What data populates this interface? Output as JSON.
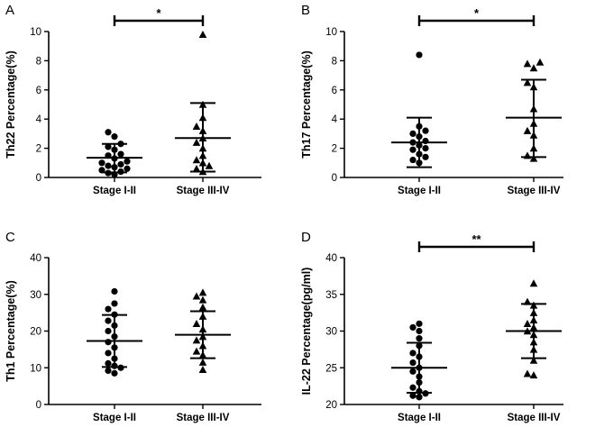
{
  "chart_data": [
    {
      "type": "scatter",
      "panel_label": "A",
      "ylabel": "Th22 Percentage(%)",
      "ylim": [
        0,
        10
      ],
      "yticks": [
        0,
        2,
        4,
        6,
        8,
        10
      ],
      "categories": [
        "Stage I-II",
        "Stage III-IV"
      ],
      "series": [
        {
          "marker": "circle",
          "values": [
            0.2,
            0.3,
            0.4,
            0.5,
            0.6,
            0.7,
            0.8,
            0.9,
            1.0,
            1.1,
            1.3,
            1.5,
            1.6,
            1.9,
            2.1,
            2.3,
            2.8,
            3.1
          ],
          "mean": 1.35,
          "sd_low": 0.35,
          "sd_high": 2.3
        },
        {
          "marker": "triangle",
          "values": [
            0.4,
            0.6,
            0.8,
            1.0,
            1.2,
            1.5,
            2.0,
            2.4,
            2.7,
            3.2,
            3.5,
            4.1,
            5.0,
            9.8
          ],
          "mean": 2.7,
          "sd_low": 0.4,
          "sd_high": 5.1
        }
      ],
      "significance": "*"
    },
    {
      "type": "scatter",
      "panel_label": "B",
      "ylabel": "Th17 Percentage(%)",
      "ylim": [
        0,
        10
      ],
      "yticks": [
        0,
        2,
        4,
        6,
        8,
        10
      ],
      "categories": [
        "Stage I-II",
        "Stage III-IV"
      ],
      "series": [
        {
          "marker": "circle",
          "values": [
            1.0,
            1.2,
            1.4,
            1.6,
            1.9,
            2.0,
            2.2,
            2.4,
            2.5,
            2.8,
            3.0,
            3.2,
            3.5,
            8.4
          ],
          "mean": 2.4,
          "sd_low": 0.7,
          "sd_high": 4.1
        },
        {
          "marker": "triangle",
          "values": [
            1.3,
            1.5,
            2.0,
            2.9,
            3.2,
            3.7,
            4.7,
            6.2,
            6.5,
            7.5,
            7.8,
            7.9
          ],
          "mean": 4.1,
          "sd_low": 1.4,
          "sd_high": 6.7
        }
      ],
      "significance": "*"
    },
    {
      "type": "scatter",
      "panel_label": "C",
      "ylabel": "Th1 Percentage(%)",
      "ylim": [
        0,
        40
      ],
      "yticks": [
        0,
        10,
        20,
        30,
        40
      ],
      "categories": [
        "Stage I-II",
        "Stage III-IV"
      ],
      "series": [
        {
          "marker": "circle",
          "values": [
            8.5,
            9.2,
            10.0,
            10.5,
            11.2,
            12.5,
            14.0,
            15.5,
            17.0,
            18.5,
            20.0,
            21.5,
            22.8,
            24.5,
            26.0,
            27.5,
            30.8
          ],
          "mean": 17.3,
          "sd_low": 10.2,
          "sd_high": 24.4
        },
        {
          "marker": "triangle",
          "values": [
            9.5,
            11.5,
            13.5,
            14.5,
            16.0,
            17.5,
            18.5,
            20.5,
            22.0,
            24.0,
            26.5,
            28.5,
            29.5,
            30.5
          ],
          "mean": 19.0,
          "sd_low": 12.6,
          "sd_high": 25.4
        }
      ],
      "significance": ""
    },
    {
      "type": "scatter",
      "panel_label": "D",
      "ylabel": "IL-22 Percentage(pg/ml)",
      "ylim": [
        20,
        40
      ],
      "yticks": [
        20,
        25,
        30,
        35,
        40
      ],
      "categories": [
        "Stage I-II",
        "Stage III-IV"
      ],
      "series": [
        {
          "marker": "circle",
          "values": [
            21.0,
            21.2,
            21.5,
            21.8,
            22.3,
            23.0,
            23.8,
            24.5,
            25.0,
            25.7,
            26.5,
            27.0,
            28.0,
            29.0,
            30.0,
            30.5,
            31.0
          ],
          "mean": 25.0,
          "sd_low": 21.6,
          "sd_high": 28.4
        },
        {
          "marker": "triangle",
          "values": [
            24.0,
            24.2,
            26.0,
            27.5,
            28.5,
            29.5,
            30.0,
            30.5,
            31.0,
            31.5,
            32.5,
            33.5,
            34.0,
            36.5
          ],
          "mean": 30.0,
          "sd_low": 26.3,
          "sd_high": 33.7
        }
      ],
      "significance": "**"
    }
  ]
}
